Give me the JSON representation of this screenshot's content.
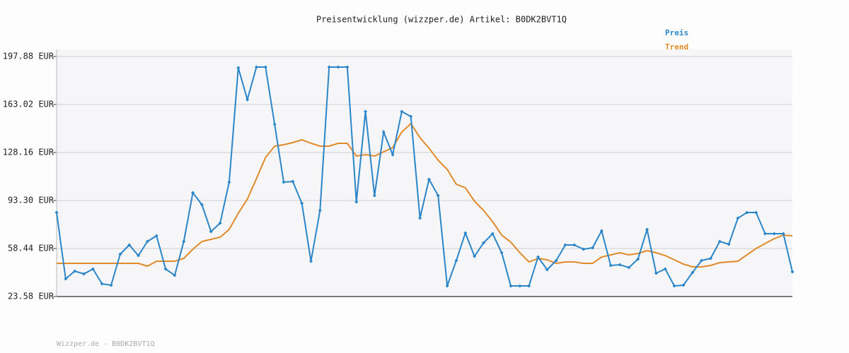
{
  "chart_data": {
    "type": "line",
    "title": "Preisentwicklung (wizzper.de) Artikel: B0DK2BVT1Q",
    "footer": "Wizzper.de - B0DK2BVT1Q",
    "categories": [
      null,
      null,
      null,
      null,
      null,
      null,
      null,
      null,
      null,
      null,
      null,
      null,
      null,
      null,
      null,
      null,
      null,
      null,
      null,
      null,
      null,
      null,
      null,
      null,
      null,
      null,
      null,
      null,
      null,
      null,
      null,
      null,
      null,
      null,
      null,
      null,
      null,
      null,
      null,
      null,
      null,
      null,
      null,
      null,
      null,
      null,
      null,
      null,
      null,
      null,
      null,
      null,
      null,
      null,
      null,
      null,
      null,
      null,
      null,
      null,
      null,
      null,
      null,
      null,
      null,
      null,
      null,
      null,
      null,
      null,
      null,
      null,
      null,
      null,
      null,
      null,
      null,
      null,
      null,
      null,
      null,
      null
    ],
    "series": [
      {
        "name": "Preis",
        "color": "#2a86c8",
        "markers": true,
        "values": [
          84.58,
          36.4,
          42.03,
          39.98,
          43.57,
          32.81,
          31.78,
          54.34,
          61.0,
          53.31,
          63.57,
          67.67,
          43.57,
          38.96,
          63.57,
          98.94,
          90.22,
          70.74,
          76.89,
          106.63,
          189.68,
          166.61,
          190.19,
          190.19,
          148.67,
          106.63,
          107.14,
          91.25,
          49.21,
          86.12,
          190.19,
          190.19,
          190.19,
          92.27,
          157.89,
          96.89,
          143.03,
          126.62,
          157.89,
          154.3,
          80.48,
          108.68,
          96.89,
          31.27,
          49.72,
          69.72,
          52.8,
          62.54,
          69.2,
          55.36,
          31.27,
          31.27,
          31.27,
          52.29,
          43.06,
          49.72,
          61.0,
          61.0,
          57.93,
          58.95,
          71.26,
          46.14,
          46.65,
          44.6,
          50.75,
          72.28,
          40.5,
          43.57,
          31.27,
          31.78,
          41.01,
          49.72,
          51.26,
          63.57,
          61.52,
          80.48,
          84.58,
          84.58,
          69.2,
          69.2,
          69.2,
          41.52
        ]
      },
      {
        "name": "Trend",
        "color": "#e08a2a",
        "markers": false,
        "values": [
          47.67,
          47.67,
          47.67,
          47.67,
          47.67,
          47.67,
          47.67,
          47.67,
          47.67,
          47.67,
          45.62,
          49.21,
          49.21,
          49.21,
          51.26,
          57.93,
          63.57,
          65.1,
          66.64,
          72.28,
          84.07,
          94.33,
          109.19,
          124.57,
          132.77,
          133.8,
          135.34,
          137.39,
          134.83,
          132.77,
          132.77,
          134.83,
          134.83,
          125.6,
          126.62,
          125.6,
          128.67,
          131.75,
          143.03,
          149.18,
          138.92,
          131.24,
          122.52,
          115.86,
          105.09,
          102.53,
          92.79,
          86.12,
          77.92,
          68.18,
          63.05,
          55.36,
          48.7,
          51.26,
          50.24,
          47.67,
          48.7,
          48.7,
          47.67,
          47.67,
          52.29,
          53.83,
          55.36,
          53.83,
          54.85,
          56.9,
          55.36,
          53.31,
          50.24,
          47.16,
          45.11,
          45.11,
          46.14,
          48.19,
          48.7,
          49.21,
          53.83,
          58.44,
          62.03,
          65.61,
          68.18,
          67.67
        ]
      }
    ],
    "ylim": [
      23.58,
      197.88
    ],
    "yticks": [
      {
        "value": 23.58,
        "label": "23.58 EUR"
      },
      {
        "value": 58.44,
        "label": "58.44 EUR"
      },
      {
        "value": 93.3,
        "label": "93.30 EUR"
      },
      {
        "value": 128.16,
        "label": "128.16 EUR"
      },
      {
        "value": 163.02,
        "label": "163.02 EUR"
      },
      {
        "value": 197.88,
        "label": "197.88 EUR"
      }
    ],
    "grid": true,
    "legend": "top-right"
  }
}
